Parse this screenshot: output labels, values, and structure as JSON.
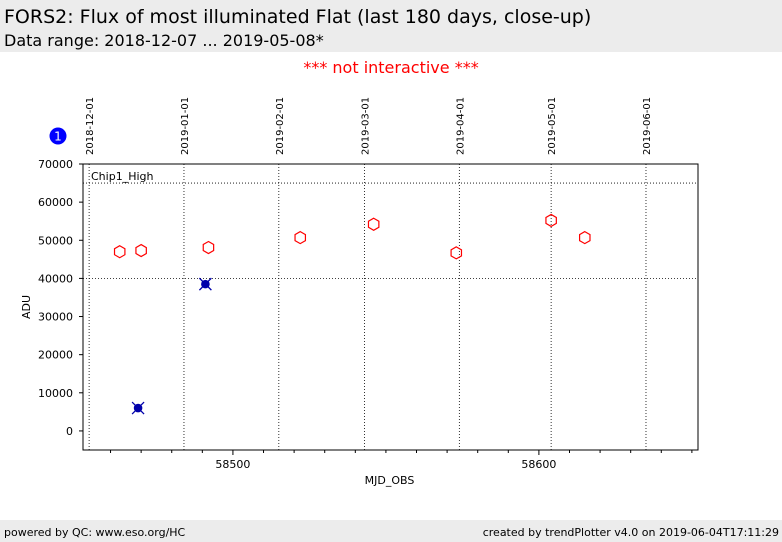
{
  "header": {
    "title": "FORS2: Flux of most illuminated Flat (last 180 days, close-up)",
    "subtitle": "Data range: 2018-12-07 ... 2019-05-08*"
  },
  "notice": "*** not interactive ***",
  "footer": {
    "left": "powered by QC: www.eso.org/HC",
    "right": "created by trendPlotter v4.0 on 2019-06-04T17:11:29"
  },
  "badge_label": "1",
  "colors": {
    "good": "#ff0000",
    "flagged": "#0000aa",
    "badge": "#0000ff",
    "notice": "#ff0000"
  },
  "chart_data": {
    "type": "scatter",
    "title": "",
    "xlabel": "MJD_OBS",
    "ylabel": "ADU",
    "xlim": [
      58451,
      58652
    ],
    "ylim": [
      -5000,
      70000
    ],
    "grid": true,
    "panel_label": "Chip1_High",
    "xticks": [
      {
        "value": 58500,
        "label": "58500"
      },
      {
        "value": 58600,
        "label": "58600"
      }
    ],
    "yticks": [
      {
        "value": 0,
        "label": "0"
      },
      {
        "value": 10000,
        "label": "10000"
      },
      {
        "value": 20000,
        "label": "20000"
      },
      {
        "value": 30000,
        "label": "30000"
      },
      {
        "value": 40000,
        "label": "40000"
      },
      {
        "value": 50000,
        "label": "50000"
      },
      {
        "value": 60000,
        "label": "60000"
      },
      {
        "value": 70000,
        "label": "70000"
      }
    ],
    "date_ticks": [
      {
        "value": 58453,
        "label": "2018-12-01"
      },
      {
        "value": 58484,
        "label": "2019-01-01"
      },
      {
        "value": 58515,
        "label": "2019-02-01"
      },
      {
        "value": 58543,
        "label": "2019-03-01"
      },
      {
        "value": 58574,
        "label": "2019-04-01"
      },
      {
        "value": 58604,
        "label": "2019-05-01"
      },
      {
        "value": 58635,
        "label": "2019-06-01"
      }
    ],
    "hlines": [
      40000,
      65000
    ],
    "series": [
      {
        "marker": "hexagon",
        "points": [
          {
            "x": 58463,
            "y": 47000
          },
          {
            "x": 58470,
            "y": 47300
          },
          {
            "x": 58492,
            "y": 48100
          },
          {
            "x": 58522,
            "y": 50700
          },
          {
            "x": 58546,
            "y": 54200
          },
          {
            "x": 58573,
            "y": 46700
          },
          {
            "x": 58604,
            "y": 55200
          },
          {
            "x": 58615,
            "y": 50700
          }
        ]
      },
      {
        "marker": "filled-circle-x",
        "points": [
          {
            "x": 58469,
            "y": 6000
          },
          {
            "x": 58491,
            "y": 38500
          }
        ]
      }
    ]
  }
}
